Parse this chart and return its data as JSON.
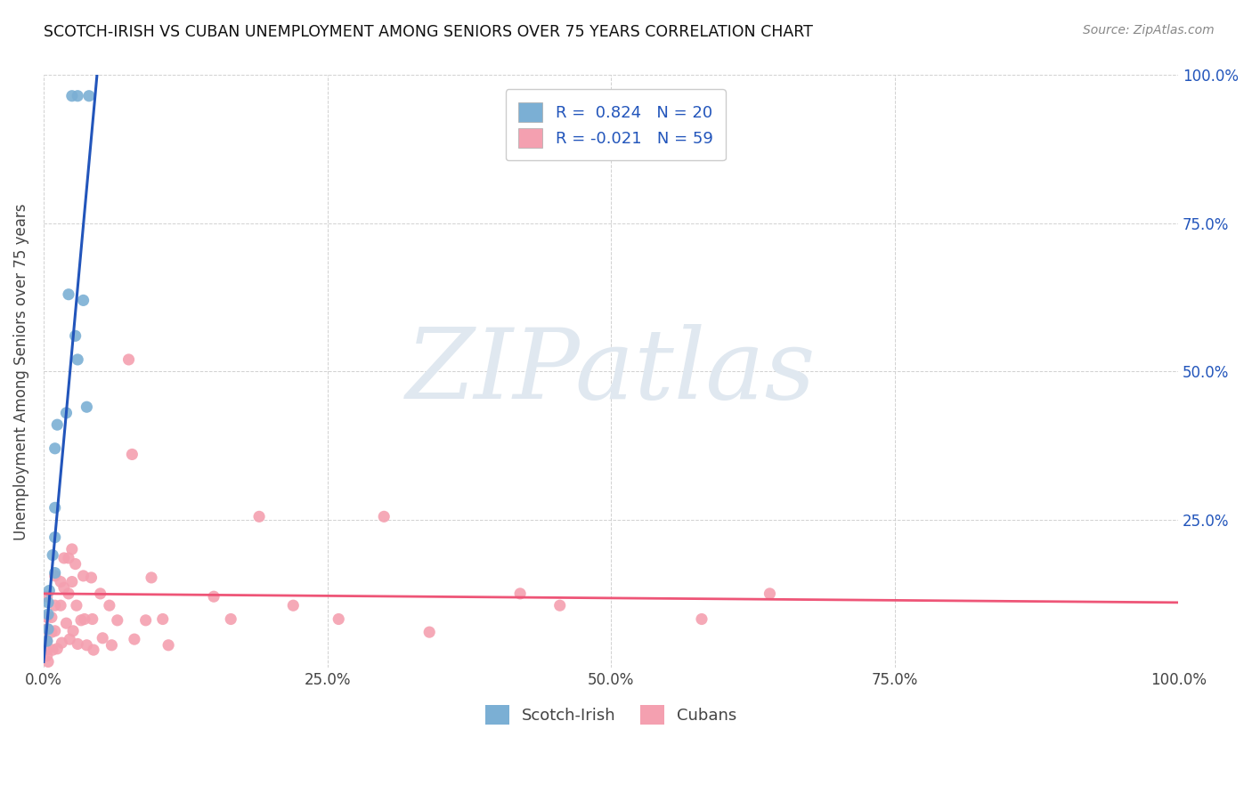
{
  "title": "SCOTCH-IRISH VS CUBAN UNEMPLOYMENT AMONG SENIORS OVER 75 YEARS CORRELATION CHART",
  "source": "Source: ZipAtlas.com",
  "ylabel": "Unemployment Among Seniors over 75 years",
  "xlim": [
    0.0,
    1.0
  ],
  "ylim": [
    0.0,
    1.0
  ],
  "xticks": [
    0.0,
    0.25,
    0.5,
    0.75,
    1.0
  ],
  "yticks": [
    0.0,
    0.25,
    0.5,
    0.75,
    1.0
  ],
  "xticklabels": [
    "0.0%",
    "25.0%",
    "50.0%",
    "75.0%",
    "100.0%"
  ],
  "right_yticklabels": [
    "",
    "25.0%",
    "50.0%",
    "75.0%",
    "100.0%"
  ],
  "scotch_irish_color": "#7BAFD4",
  "cuban_color": "#F4A0B0",
  "scotch_irish_line_color": "#2255BB",
  "cuban_line_color": "#EE5577",
  "background_color": "#FFFFFF",
  "watermark": "ZIPatlas",
  "watermark_color": "#E0E8F0",
  "legend_label_scotch": "R =  0.824   N = 20",
  "legend_label_cuban": "R = -0.021   N = 59",
  "legend_label_color": "#2255BB",
  "scotch_irish_x": [
    0.025,
    0.03,
    0.04,
    0.035,
    0.022,
    0.028,
    0.03,
    0.038,
    0.02,
    0.012,
    0.01,
    0.01,
    0.01,
    0.008,
    0.01,
    0.005,
    0.004,
    0.004,
    0.004,
    0.003
  ],
  "scotch_irish_y": [
    0.965,
    0.965,
    0.965,
    0.62,
    0.63,
    0.56,
    0.52,
    0.44,
    0.43,
    0.41,
    0.37,
    0.27,
    0.22,
    0.19,
    0.16,
    0.13,
    0.11,
    0.09,
    0.065,
    0.045
  ],
  "cuban_x": [
    0.003,
    0.003,
    0.003,
    0.003,
    0.003,
    0.003,
    0.004,
    0.007,
    0.007,
    0.008,
    0.01,
    0.01,
    0.01,
    0.012,
    0.015,
    0.015,
    0.016,
    0.018,
    0.018,
    0.02,
    0.022,
    0.022,
    0.023,
    0.025,
    0.025,
    0.026,
    0.028,
    0.029,
    0.03,
    0.033,
    0.035,
    0.036,
    0.038,
    0.042,
    0.043,
    0.044,
    0.05,
    0.052,
    0.058,
    0.06,
    0.065,
    0.075,
    0.078,
    0.08,
    0.09,
    0.095,
    0.105,
    0.11,
    0.15,
    0.165,
    0.19,
    0.22,
    0.26,
    0.3,
    0.34,
    0.42,
    0.455,
    0.58,
    0.64
  ],
  "cuban_y": [
    0.12,
    0.085,
    0.065,
    0.045,
    0.03,
    0.02,
    0.01,
    0.085,
    0.06,
    0.03,
    0.155,
    0.105,
    0.062,
    0.032,
    0.145,
    0.105,
    0.042,
    0.185,
    0.135,
    0.075,
    0.185,
    0.125,
    0.048,
    0.2,
    0.145,
    0.062,
    0.175,
    0.105,
    0.04,
    0.08,
    0.155,
    0.082,
    0.038,
    0.152,
    0.082,
    0.03,
    0.125,
    0.05,
    0.105,
    0.038,
    0.08,
    0.52,
    0.36,
    0.048,
    0.08,
    0.152,
    0.082,
    0.038,
    0.12,
    0.082,
    0.255,
    0.105,
    0.082,
    0.255,
    0.06,
    0.125,
    0.105,
    0.082,
    0.125
  ],
  "scotch_irish_trendline_x": [
    0.0,
    0.048
  ],
  "scotch_irish_trendline_y": [
    0.01,
    1.02
  ],
  "cuban_trendline_x": [
    0.0,
    1.0
  ],
  "cuban_trendline_y": [
    0.125,
    0.11
  ]
}
